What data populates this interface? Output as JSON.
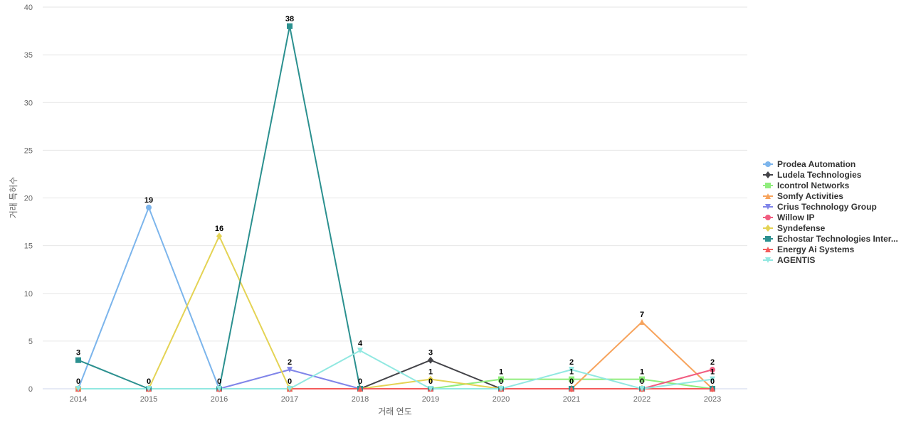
{
  "chart_data": {
    "type": "line",
    "xlabel": "거래 연도",
    "ylabel": "거래 특허수",
    "ylim": [
      0,
      40
    ],
    "yticks": [
      0,
      5,
      10,
      15,
      20,
      25,
      30,
      35,
      40
    ],
    "grid": true,
    "legend_position": "right",
    "categories": [
      "2014",
      "2015",
      "2016",
      "2017",
      "2018",
      "2019",
      "2020",
      "2021",
      "2022",
      "2023"
    ],
    "series": [
      {
        "name": "Prodea Automation",
        "color": "#7cb5ec",
        "marker": "circle",
        "values": [
          0,
          19,
          0,
          0,
          0,
          0,
          0,
          0,
          0,
          0
        ]
      },
      {
        "name": "Ludela Technologies",
        "color": "#434348",
        "marker": "diamond",
        "values": [
          0,
          0,
          0,
          0,
          0,
          3,
          0,
          0,
          0,
          0
        ]
      },
      {
        "name": "Icontrol Networks",
        "color": "#90ed7d",
        "marker": "square",
        "values": [
          0,
          0,
          0,
          0,
          0,
          0,
          1,
          1,
          1,
          0
        ]
      },
      {
        "name": "Somfy Activities",
        "color": "#f7a35c",
        "marker": "triangle",
        "values": [
          0,
          0,
          0,
          0,
          0,
          0,
          0,
          0,
          7,
          0
        ]
      },
      {
        "name": "Crius Technology Group",
        "color": "#8085e9",
        "marker": "triangle-down",
        "values": [
          0,
          0,
          0,
          2,
          0,
          0,
          0,
          0,
          0,
          0
        ]
      },
      {
        "name": "Willow IP",
        "color": "#f15c80",
        "marker": "circle",
        "values": [
          0,
          0,
          0,
          0,
          0,
          0,
          0,
          0,
          0,
          2
        ]
      },
      {
        "name": "Syndefense",
        "color": "#e4d354",
        "marker": "diamond",
        "values": [
          0,
          0,
          16,
          0,
          0,
          1,
          0,
          0,
          0,
          0
        ]
      },
      {
        "name": "Echostar Technologies Inter...",
        "color": "#2b908f",
        "marker": "square",
        "values": [
          3,
          0,
          0,
          38,
          0,
          0,
          0,
          0,
          0,
          0
        ]
      },
      {
        "name": "Energy Ai Systems",
        "color": "#f45b5b",
        "marker": "triangle",
        "values": [
          0,
          0,
          0,
          0,
          0,
          0,
          0,
          0,
          0,
          0
        ]
      },
      {
        "name": "AGENTIS",
        "color": "#91e8e1",
        "marker": "triangle-down",
        "values": [
          0,
          0,
          0,
          0,
          4,
          0,
          0,
          2,
          0,
          1
        ]
      }
    ],
    "data_labels": [
      {
        "series": "Echostar Technologies Inter...",
        "x": "2014",
        "text": "3"
      },
      {
        "series": "Prodea Automation",
        "x": "2014",
        "text": "0"
      },
      {
        "series": "Prodea Automation",
        "x": "2015",
        "text": "19"
      },
      {
        "series": "Echostar Technologies Inter...",
        "x": "2015",
        "text": "0"
      },
      {
        "series": "Syndefense",
        "x": "2016",
        "text": "16"
      },
      {
        "series": "Echostar Technologies Inter...",
        "x": "2016",
        "text": "0"
      },
      {
        "series": "Echostar Technologies Inter...",
        "x": "2017",
        "text": "38"
      },
      {
        "series": "Crius Technology Group",
        "x": "2017",
        "text": "2"
      },
      {
        "series": "Syndefense",
        "x": "2017",
        "text": "0"
      },
      {
        "series": "AGENTIS",
        "x": "2018",
        "text": "4"
      },
      {
        "series": "Echostar Technologies Inter...",
        "x": "2018",
        "text": "0"
      },
      {
        "series": "Ludela Technologies",
        "x": "2019",
        "text": "3"
      },
      {
        "series": "Syndefense",
        "x": "2019",
        "text": "1"
      },
      {
        "series": "Icontrol Networks",
        "x": "2019",
        "text": "0"
      },
      {
        "series": "Icontrol Networks",
        "x": "2020",
        "text": "1"
      },
      {
        "series": "Ludela Technologies",
        "x": "2020",
        "text": "0"
      },
      {
        "series": "AGENTIS",
        "x": "2021",
        "text": "2"
      },
      {
        "series": "Icontrol Networks",
        "x": "2021",
        "text": "1"
      },
      {
        "series": "Echostar Technologies Inter...",
        "x": "2021",
        "text": "0"
      },
      {
        "series": "Somfy Activities",
        "x": "2022",
        "text": "7"
      },
      {
        "series": "Icontrol Networks",
        "x": "2022",
        "text": "1"
      },
      {
        "series": "Echostar Technologies Inter...",
        "x": "2022",
        "text": "0"
      },
      {
        "series": "Willow IP",
        "x": "2023",
        "text": "2"
      },
      {
        "series": "AGENTIS",
        "x": "2023",
        "text": "1"
      },
      {
        "series": "Echostar Technologies Inter...",
        "x": "2023",
        "text": "0"
      }
    ]
  }
}
